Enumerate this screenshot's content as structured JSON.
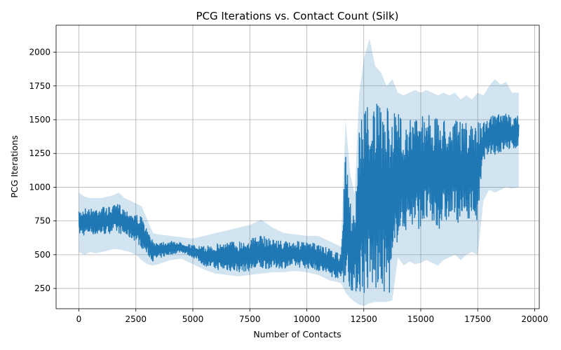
{
  "chart_data": {
    "type": "line",
    "title": "PCG Iterations vs. Contact Count (Silk)",
    "xlabel": "Number of Contacts",
    "ylabel": "PCG Iterations",
    "xlim": [
      -1000,
      20200
    ],
    "ylim": [
      100,
      2200
    ],
    "grid": true,
    "x_ticks": [
      0,
      2500,
      5000,
      7500,
      10000,
      12500,
      15000,
      17500,
      20000
    ],
    "x_tick_labels": [
      "0",
      "2500",
      "5000",
      "7500",
      "10000",
      "12500",
      "15000",
      "17500",
      "20000"
    ],
    "y_ticks": [
      250,
      500,
      750,
      1000,
      1250,
      1500,
      1750,
      2000
    ],
    "y_tick_labels": [
      "250",
      "500",
      "750",
      "1000",
      "1250",
      "1500",
      "1750",
      "2000"
    ],
    "series": [
      {
        "color": "#1f77b4",
        "band_color": "#1f77b4",
        "band_opacity": 0.2,
        "x": [
          0,
          250,
          500,
          750,
          1000,
          1250,
          1500,
          1750,
          2000,
          2250,
          2500,
          2750,
          3000,
          3250,
          3500,
          4000,
          4500,
          5000,
          5500,
          6000,
          6500,
          7000,
          7500,
          8000,
          8500,
          9000,
          9500,
          10000,
          10500,
          11000,
          11500,
          11700,
          11900,
          12100,
          12300,
          12500,
          12750,
          13000,
          13250,
          13500,
          13750,
          14000,
          14250,
          14500,
          14750,
          15000,
          15250,
          15500,
          15750,
          16000,
          16250,
          16500,
          16750,
          17000,
          17250,
          17500,
          17750,
          18000,
          18250,
          18500,
          18750,
          19000,
          19300
        ],
        "low": [
          650,
          640,
          660,
          640,
          650,
          650,
          670,
          660,
          640,
          620,
          600,
          550,
          500,
          450,
          470,
          500,
          520,
          480,
          420,
          390,
          380,
          370,
          380,
          390,
          400,
          400,
          410,
          400,
          380,
          340,
          320,
          280,
          240,
          220,
          210,
          200,
          210,
          210,
          210,
          210,
          220,
          650,
          660,
          700,
          680,
          700,
          720,
          700,
          680,
          720,
          750,
          760,
          720,
          760,
          780,
          720,
          1200,
          1250,
          1240,
          1250,
          1280,
          1270,
          1300
        ],
        "high": [
          820,
          850,
          840,
          850,
          860,
          850,
          860,
          880,
          840,
          820,
          800,
          780,
          680,
          600,
          600,
          600,
          590,
          570,
          560,
          580,
          600,
          600,
          620,
          640,
          620,
          600,
          600,
          590,
          580,
          540,
          500,
          1250,
          900,
          820,
          1450,
          1600,
          1650,
          1620,
          1600,
          1580,
          1600,
          1560,
          1480,
          1500,
          1520,
          1550,
          1560,
          1540,
          1500,
          1520,
          1500,
          1500,
          1480,
          1480,
          1450,
          1500,
          1480,
          1520,
          1540,
          1540,
          1550,
          1520,
          1550
        ],
        "band_low": [
          520,
          500,
          520,
          510,
          520,
          530,
          540,
          540,
          530,
          520,
          500,
          460,
          430,
          420,
          430,
          460,
          470,
          430,
          390,
          360,
          350,
          340,
          350,
          360,
          370,
          370,
          380,
          370,
          350,
          310,
          290,
          220,
          180,
          150,
          130,
          120,
          140,
          150,
          150,
          150,
          160,
          480,
          420,
          450,
          430,
          440,
          460,
          440,
          420,
          460,
          480,
          500,
          460,
          500,
          520,
          500,
          900,
          980,
          960,
          980,
          1000,
          990,
          1000
        ],
        "band_high": [
          960,
          930,
          920,
          920,
          920,
          930,
          940,
          960,
          920,
          900,
          880,
          860,
          760,
          660,
          650,
          640,
          630,
          620,
          640,
          660,
          680,
          700,
          720,
          760,
          700,
          660,
          650,
          640,
          640,
          600,
          560,
          1500,
          1100,
          950,
          1700,
          1950,
          2100,
          1900,
          1850,
          1750,
          1800,
          1700,
          1680,
          1700,
          1720,
          1700,
          1720,
          1700,
          1680,
          1700,
          1680,
          1700,
          1650,
          1680,
          1650,
          1700,
          1680,
          1750,
          1800,
          1760,
          1780,
          1700,
          1700
        ]
      }
    ]
  }
}
